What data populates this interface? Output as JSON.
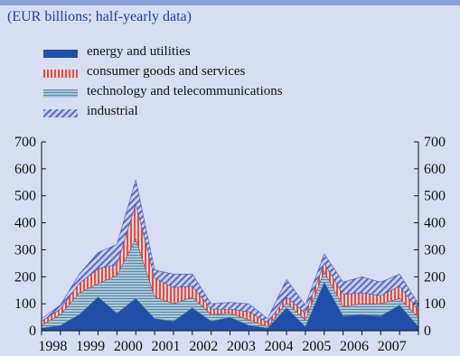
{
  "subtitle": "(EUR billions; half-yearly data)",
  "colors": {
    "energy": "#1f4fa8",
    "consumer": "#d8524e",
    "technology": "#a9c7d9",
    "industrial": "#8c98d4",
    "background": "#d7def3"
  },
  "chart_data": {
    "type": "area",
    "stacked": true,
    "title": "",
    "xlabel": "",
    "ylabel": "",
    "ylim": [
      0,
      700
    ],
    "yticks": [
      0,
      100,
      200,
      300,
      400,
      500,
      600,
      700
    ],
    "x_tick_labels": [
      "1998",
      "1999",
      "2000",
      "2001",
      "2002",
      "2003",
      "2004",
      "2005",
      "2006",
      "2007"
    ],
    "x": [
      "1997 H2",
      "1998 H1",
      "1998 H2",
      "1999 H1",
      "1999 H2",
      "2000 H1",
      "2000 H2",
      "2001 H1",
      "2001 H2",
      "2002 H1",
      "2002 H2",
      "2003 H1",
      "2003 H2",
      "2004 H1",
      "2004 H2",
      "2005 H1",
      "2005 H2",
      "2006 H1",
      "2006 H2",
      "2007 H1",
      "2007 H2"
    ],
    "series": [
      {
        "name": "energy and utilities",
        "values": [
          10,
          20,
          60,
          125,
          65,
          120,
          45,
          35,
          85,
          35,
          50,
          20,
          10,
          85,
          15,
          180,
          55,
          60,
          55,
          95,
          15
        ]
      },
      {
        "name": "technology and telecommunications",
        "values": [
          10,
          40,
          80,
          50,
          140,
          220,
          80,
          65,
          40,
          25,
          15,
          20,
          5,
          20,
          25,
          40,
          35,
          40,
          45,
          25,
          35
        ]
      },
      {
        "name": "consumer goods and services",
        "values": [
          15,
          20,
          35,
          55,
          40,
          130,
          70,
          60,
          40,
          20,
          15,
          30,
          15,
          20,
          25,
          30,
          45,
          40,
          30,
          45,
          25
        ]
      },
      {
        "name": "industrial",
        "values": [
          10,
          15,
          35,
          60,
          75,
          90,
          30,
          50,
          45,
          20,
          25,
          30,
          15,
          65,
          30,
          35,
          45,
          60,
          50,
          45,
          25
        ]
      }
    ],
    "legend": [
      {
        "key": "energy",
        "label": "energy and utilities"
      },
      {
        "key": "consumer",
        "label": "consumer goods and services"
      },
      {
        "key": "technology",
        "label": "technology and telecommunications"
      },
      {
        "key": "industrial",
        "label": "industrial"
      }
    ],
    "legend_position": "top-left",
    "grid": false
  }
}
